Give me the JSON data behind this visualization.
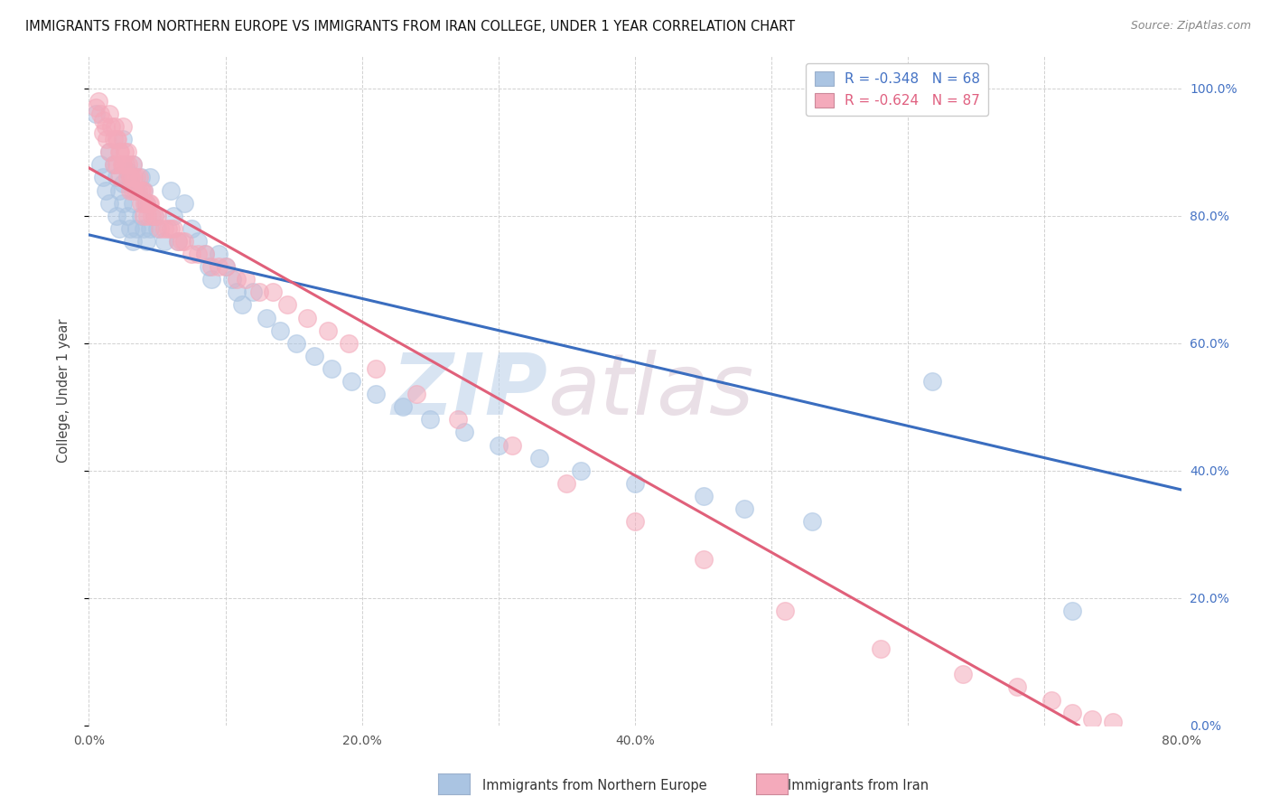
{
  "title": "IMMIGRANTS FROM NORTHERN EUROPE VS IMMIGRANTS FROM IRAN COLLEGE, UNDER 1 YEAR CORRELATION CHART",
  "source": "Source: ZipAtlas.com",
  "ylabel": "College, Under 1 year",
  "xlim": [
    0.0,
    0.8
  ],
  "ylim": [
    0.0,
    1.05
  ],
  "blue_color": "#aac4e2",
  "pink_color": "#f4aabb",
  "blue_line_color": "#3a6dbf",
  "pink_line_color": "#e0607a",
  "watermark_zip": "ZIP",
  "watermark_atlas": "atlas",
  "legend_blue_text": "R = -0.348   N = 68",
  "legend_pink_text": "R = -0.624   N = 87",
  "blue_line_x0": 0.0,
  "blue_line_x1": 0.8,
  "blue_line_y0": 0.77,
  "blue_line_y1": 0.37,
  "pink_line_x0": 0.0,
  "pink_line_x1": 0.725,
  "pink_line_y0": 0.875,
  "pink_line_y1": 0.0,
  "blue_scatter_x": [
    0.005,
    0.008,
    0.01,
    0.012,
    0.015,
    0.015,
    0.018,
    0.02,
    0.02,
    0.022,
    0.022,
    0.025,
    0.025,
    0.025,
    0.028,
    0.028,
    0.03,
    0.03,
    0.032,
    0.032,
    0.032,
    0.035,
    0.035,
    0.038,
    0.038,
    0.04,
    0.04,
    0.042,
    0.042,
    0.045,
    0.045,
    0.048,
    0.05,
    0.055,
    0.06,
    0.062,
    0.065,
    0.07,
    0.075,
    0.08,
    0.085,
    0.088,
    0.09,
    0.095,
    0.1,
    0.105,
    0.108,
    0.112,
    0.12,
    0.13,
    0.14,
    0.152,
    0.165,
    0.178,
    0.192,
    0.21,
    0.23,
    0.25,
    0.275,
    0.3,
    0.33,
    0.36,
    0.4,
    0.45,
    0.48,
    0.53,
    0.618,
    0.72
  ],
  "blue_scatter_y": [
    0.96,
    0.88,
    0.86,
    0.84,
    0.9,
    0.82,
    0.88,
    0.86,
    0.8,
    0.84,
    0.78,
    0.92,
    0.85,
    0.82,
    0.87,
    0.8,
    0.85,
    0.78,
    0.88,
    0.82,
    0.76,
    0.84,
    0.78,
    0.86,
    0.8,
    0.84,
    0.78,
    0.82,
    0.76,
    0.86,
    0.78,
    0.8,
    0.78,
    0.76,
    0.84,
    0.8,
    0.76,
    0.82,
    0.78,
    0.76,
    0.74,
    0.72,
    0.7,
    0.74,
    0.72,
    0.7,
    0.68,
    0.66,
    0.68,
    0.64,
    0.62,
    0.6,
    0.58,
    0.56,
    0.54,
    0.52,
    0.5,
    0.48,
    0.46,
    0.44,
    0.42,
    0.4,
    0.38,
    0.36,
    0.34,
    0.32,
    0.54,
    0.18
  ],
  "pink_scatter_x": [
    0.005,
    0.007,
    0.008,
    0.01,
    0.01,
    0.012,
    0.013,
    0.015,
    0.015,
    0.016,
    0.018,
    0.018,
    0.019,
    0.02,
    0.02,
    0.021,
    0.022,
    0.022,
    0.023,
    0.024,
    0.025,
    0.025,
    0.026,
    0.027,
    0.028,
    0.028,
    0.029,
    0.03,
    0.03,
    0.031,
    0.032,
    0.032,
    0.033,
    0.034,
    0.035,
    0.036,
    0.037,
    0.038,
    0.038,
    0.039,
    0.04,
    0.04,
    0.041,
    0.042,
    0.043,
    0.044,
    0.045,
    0.046,
    0.048,
    0.05,
    0.052,
    0.055,
    0.058,
    0.06,
    0.062,
    0.065,
    0.068,
    0.07,
    0.075,
    0.08,
    0.085,
    0.09,
    0.095,
    0.1,
    0.108,
    0.115,
    0.125,
    0.135,
    0.145,
    0.16,
    0.175,
    0.19,
    0.21,
    0.24,
    0.27,
    0.31,
    0.35,
    0.4,
    0.45,
    0.51,
    0.58,
    0.64,
    0.68,
    0.705,
    0.72,
    0.735,
    0.75
  ],
  "pink_scatter_y": [
    0.97,
    0.98,
    0.96,
    0.95,
    0.93,
    0.94,
    0.92,
    0.96,
    0.9,
    0.94,
    0.92,
    0.88,
    0.94,
    0.92,
    0.88,
    0.92,
    0.9,
    0.86,
    0.9,
    0.88,
    0.94,
    0.88,
    0.9,
    0.88,
    0.9,
    0.86,
    0.88,
    0.86,
    0.84,
    0.86,
    0.88,
    0.84,
    0.86,
    0.84,
    0.86,
    0.84,
    0.86,
    0.84,
    0.82,
    0.84,
    0.84,
    0.8,
    0.82,
    0.82,
    0.8,
    0.82,
    0.82,
    0.8,
    0.8,
    0.8,
    0.78,
    0.78,
    0.78,
    0.78,
    0.78,
    0.76,
    0.76,
    0.76,
    0.74,
    0.74,
    0.74,
    0.72,
    0.72,
    0.72,
    0.7,
    0.7,
    0.68,
    0.68,
    0.66,
    0.64,
    0.62,
    0.6,
    0.56,
    0.52,
    0.48,
    0.44,
    0.38,
    0.32,
    0.26,
    0.18,
    0.12,
    0.08,
    0.06,
    0.04,
    0.02,
    0.01,
    0.005
  ],
  "dot_size": 200
}
